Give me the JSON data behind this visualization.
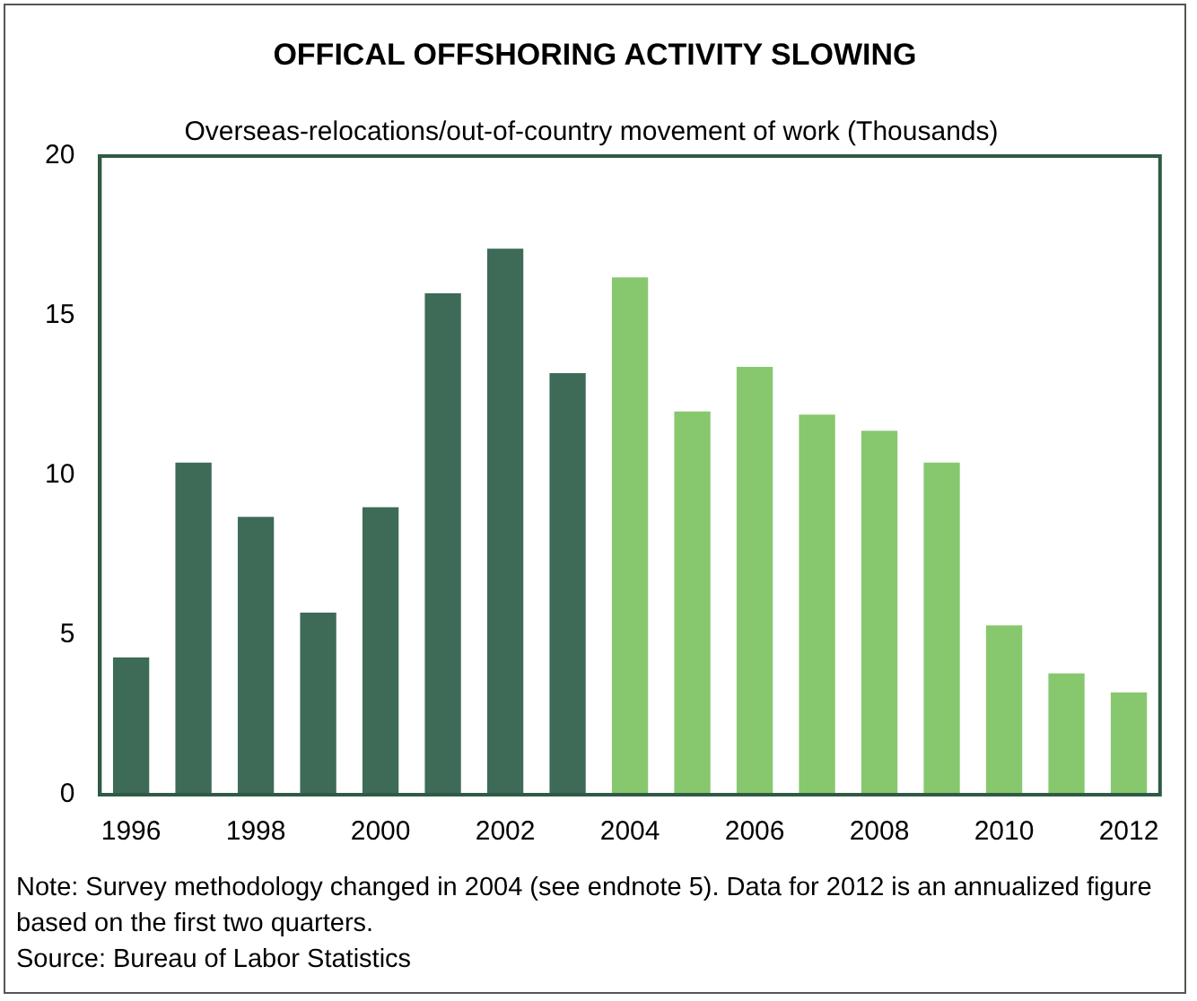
{
  "chart_data": {
    "type": "bar",
    "title": "OFFICAL OFFSHORING ACTIVITY SLOWING",
    "subtitle": "Overseas-relocations/out-of-country movement of work (Thousands)",
    "categories": [
      "1996",
      null,
      "1998",
      null,
      "2000",
      null,
      "2002",
      null,
      "2004",
      null,
      "2006",
      null,
      "2008",
      null,
      "2010",
      null,
      "2012"
    ],
    "values": [
      4.3,
      10.4,
      8.7,
      5.7,
      9.0,
      15.7,
      17.1,
      13.2,
      16.2,
      12.0,
      13.4,
      11.9,
      11.4,
      10.4,
      5.3,
      3.8,
      3.2
    ],
    "colors": [
      "#3d6b58",
      "#3d6b58",
      "#3d6b58",
      "#3d6b58",
      "#3d6b58",
      "#3d6b58",
      "#3d6b58",
      "#3d6b58",
      "#87c86e",
      "#87c86e",
      "#87c86e",
      "#87c86e",
      "#87c86e",
      "#87c86e",
      "#87c86e",
      "#87c86e",
      "#87c86e"
    ],
    "ylim": [
      0,
      20
    ],
    "yticks": [
      0,
      5,
      10,
      15,
      20
    ],
    "grid": false,
    "legend": false,
    "annotations": [
      "Note: Survey methodology changed in 2004 (see endnote 5).  Data for 2012 is an annualized figure based on the first two quarters.",
      "Source: Bureau of Labor Statistics"
    ]
  }
}
